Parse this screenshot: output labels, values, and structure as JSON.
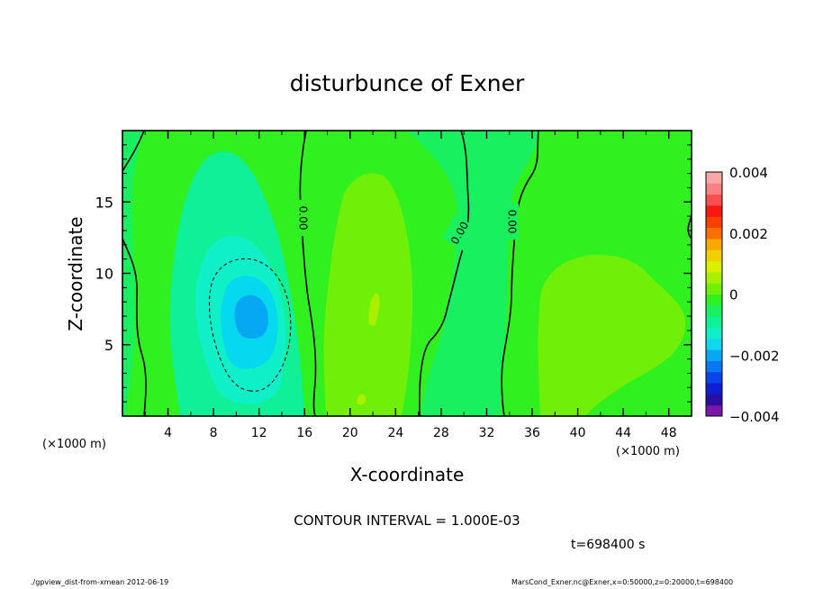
{
  "chart_data": {
    "type": "heatmap",
    "title": "disturbunce of Exner",
    "xlabel": "X-coordinate",
    "ylabel": "Z-coordinate",
    "x_unit": "(×1000 m)",
    "z_unit": "(×1000 m)",
    "xlim": [
      0,
      50
    ],
    "ylim": [
      0,
      20
    ],
    "x_ticks": [
      "4",
      "8",
      "12",
      "16",
      "20",
      "24",
      "28",
      "32",
      "36",
      "40",
      "44",
      "48"
    ],
    "x_tick_values": [
      4,
      8,
      12,
      16,
      20,
      24,
      28,
      32,
      36,
      40,
      44,
      48
    ],
    "y_ticks": [
      "5",
      "10",
      "15"
    ],
    "y_tick_values": [
      5,
      10,
      15
    ],
    "colorbar": {
      "min": -0.004,
      "max": 0.004,
      "labels": [
        "0.004",
        "0.002",
        "0",
        "−0.002",
        "−0.004"
      ],
      "label_values": [
        0.004,
        0.002,
        0,
        -0.002,
        -0.004
      ],
      "colors": [
        "#7b16a8",
        "#2c0fa0",
        "#0d1fd0",
        "#0a44e8",
        "#0a78f0",
        "#06a8f4",
        "#10d6f0",
        "#10f0c8",
        "#10f098",
        "#18f060",
        "#30f020",
        "#70f008",
        "#a8f000",
        "#d8f000",
        "#f0d000",
        "#f8a800",
        "#f87000",
        "#f84000",
        "#f81810",
        "#f85050",
        "#f88080",
        "#f8a8a8"
      ]
    },
    "labels": {
      "contour_interval": "CONTOUR INTERVAL = 1.000E-03",
      "time": "t=698400 s",
      "contour_label": "0.00"
    },
    "contour_interval": 0.001,
    "regions": [
      {
        "name": "negative core",
        "x_center": 11.5,
        "z_center": 7.5,
        "value": -0.0025
      },
      {
        "name": "positive band",
        "x_center": 22,
        "z_center": 10,
        "value": 0.0005
      },
      {
        "name": "positive patch",
        "x_center": 42,
        "z_center": 7,
        "value": 0.0005
      }
    ],
    "grid": false
  },
  "footer": {
    "left": "./gpview_dist-from-xmean  2012-06-19",
    "right": "MarsCond_Exner.nc@Exner,x=0:50000,z=0:20000,t=698400"
  }
}
